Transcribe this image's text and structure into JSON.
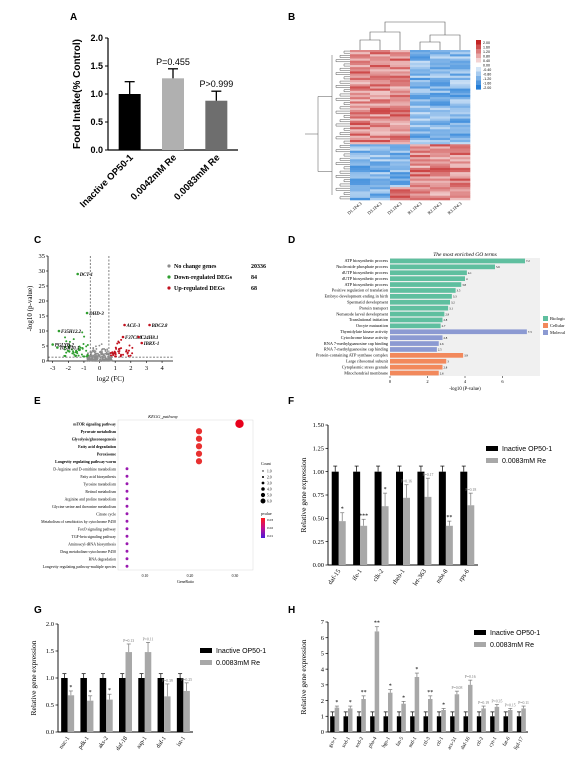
{
  "panel_labels": [
    "A",
    "B",
    "C",
    "D",
    "E",
    "F",
    "G",
    "H"
  ],
  "chart_data": [
    {
      "panel": "A",
      "type": "bar",
      "categories": [
        "Inactive OP50-1",
        "0.0042mM Re",
        "0.0083mM Re"
      ],
      "values": [
        1.0,
        1.28,
        0.88
      ],
      "errors": [
        0.22,
        0.17,
        0.17
      ],
      "colors": [
        "#000000",
        "#b0b0b0",
        "#6e6e6e"
      ],
      "ylabel": "Food Intake(% Control)",
      "ylim": [
        0,
        2.0
      ],
      "yticks": [
        "0.0",
        "0.5",
        "1.0",
        "1.5",
        "2.0"
      ],
      "annotations": [
        "P=0.455",
        "P>0.999"
      ]
    },
    {
      "panel": "B",
      "type": "heatmap",
      "columns": [
        "D1.1P4.3",
        "D3.1P4.3",
        "D3.1P4.3",
        "R1.1P4.3",
        "R2.1P4.3",
        "R3.1P4.3"
      ],
      "legend_values": [
        "2.00",
        "1.60",
        "1.20",
        "0.80",
        "0.40",
        "0.00",
        "-0.40",
        "-0.80",
        "-1.20",
        "-1.60",
        "-2.00"
      ],
      "rows": 70
    },
    {
      "panel": "C",
      "type": "scatter",
      "xlabel": "log2 (FC)",
      "ylabel": "-log10 (p-value)",
      "xticks": [
        "-3",
        "-2",
        "-1",
        "0",
        "1",
        "2",
        "3",
        "4"
      ],
      "yticks": [
        "0",
        "5",
        "10",
        "15",
        "20",
        "25",
        "30",
        "35"
      ],
      "legend": [
        {
          "label": "No change genes",
          "count": "20336",
          "color": "#8c8c8c"
        },
        {
          "label": "Down-regulated DEGs",
          "count": "84",
          "color": "#2f9e2f"
        },
        {
          "label": "Up-regulated DEGs",
          "count": "68",
          "color": "#c1121f"
        }
      ],
      "gene_labels": [
        "DCT-1",
        "DHD-3",
        "F35H12.2",
        "PGLYB-2",
        "T05H10.1",
        "ACE-3",
        "BDC2.8",
        "F37C8.9",
        "C24H8.1",
        "IBRX-1"
      ]
    },
    {
      "panel": "D",
      "type": "bar",
      "title": "The most enriched GO terms",
      "categories": [
        "ATP biosynthetic process",
        "Nucleoside phosphate process",
        "dUTP biosynthetic process",
        "dUTP biosynthetic process",
        "ATP biosynthetic process",
        "Positive regulation of translation",
        "Embryo development ending in birth",
        "Spermatid development",
        "Protein transport",
        "Nematode larval development",
        "Translational initiation",
        "Oocyte maturation",
        "Thymidylate kinase activity",
        "Cytochrome kinase activity",
        "RNA 7-methylguanosine cap binding",
        "RNA 7-methylguanosine cap binding",
        "Protein-containing ATP synthase complex",
        "Large ribosomal subunit",
        "Cytoplasmic stress granule",
        "Mitochondrial membrane"
      ],
      "values": [
        7.2,
        5.6,
        4.1,
        4.0,
        3.8,
        3.5,
        3.3,
        3.2,
        3.1,
        2.9,
        2.8,
        2.7,
        7.3,
        2.8,
        2.6,
        2.5,
        3.9,
        3.0,
        2.8,
        2.6
      ],
      "groups": [
        "bp",
        "bp",
        "bp",
        "bp",
        "bp",
        "bp",
        "bp",
        "bp",
        "bp",
        "bp",
        "bp",
        "bp",
        "mf",
        "mf",
        "mf",
        "mf",
        "cc",
        "cc",
        "cc",
        "cc"
      ],
      "legend": [
        {
          "label": "Biological process",
          "color": "#5fbf9f"
        },
        {
          "label": "Cellular component",
          "color": "#f2895c"
        },
        {
          "label": "Molecular function",
          "color": "#8c9ad2"
        }
      ],
      "xlabel": "-log10 (P-value)",
      "xticks": [
        "0",
        "2",
        "4",
        "6"
      ],
      "xlim": [
        0,
        8
      ]
    },
    {
      "panel": "E",
      "type": "scatter",
      "title": "KEGG_pathway",
      "categories": [
        "mTOR signaling pathway",
        "Pyruvate metabolism",
        "Glycolysis/gluconeogenesis",
        "Fatty acid degradation",
        "Peroxisome",
        "Longevity regulating pathway-worm",
        "D-Arginine and D-ornithine metabolism",
        "Fatty acid biosynthesis",
        "Tyrosine metabolism",
        "Retinol metabolism",
        "Arginine and proline metabolism",
        "Glycine serine and threonine metabolism",
        "Citrate cycle",
        "Metabolism of xenobiotics by cytochrome P450",
        "FoxO signaling pathway",
        "TGF-beta signaling pathway",
        "Aminoacyl-tRNA biosynthesis",
        "Drug metabolism-cytochrome P450",
        "RNA degradation",
        "Longevity regulating pathway-multiple species"
      ],
      "x": [
        0.31,
        0.22,
        0.22,
        0.22,
        0.22,
        0.22,
        0.06,
        0.06,
        0.06,
        0.06,
        0.06,
        0.06,
        0.06,
        0.06,
        0.06,
        0.06,
        0.06,
        0.06,
        0.06,
        0.06
      ],
      "size": [
        6,
        4,
        4,
        4,
        4,
        4,
        1,
        1,
        1,
        1,
        1,
        1,
        1,
        1,
        1,
        1,
        1,
        1,
        1,
        1
      ],
      "xlabel": "GeneRatio",
      "xticks": [
        "0.10",
        "0.20",
        "0.30"
      ],
      "xlim": [
        0.04,
        0.34
      ],
      "size_legend_title": "Count",
      "size_legend": [
        "1.0",
        "2.0",
        "3.0",
        "4.0",
        "5.0",
        "6.0"
      ],
      "color_legend_title": "pvalue",
      "color_legend": [
        "0.03",
        "0.02",
        "0.01"
      ]
    },
    {
      "panel": "F",
      "type": "bar",
      "categories": [
        "daf-15",
        "ife-1",
        "clk-2",
        "rheb-1",
        "let-363",
        "mbt-8",
        "rps-6"
      ],
      "series": [
        {
          "name": "Inactive OP50-1",
          "values": [
            1.0,
            1.0,
            1.0,
            1.0,
            1.0,
            1.0,
            1.0
          ],
          "color": "#000000"
        },
        {
          "name": "0.0083mM Re",
          "values": [
            0.47,
            0.42,
            0.63,
            0.72,
            0.73,
            0.42,
            0.64
          ],
          "color": "#a8a8a8"
        }
      ],
      "errors": [
        0.09,
        0.07,
        0.14,
        0.14,
        0.2,
        0.05,
        0.13
      ],
      "annotations": [
        "*",
        "***",
        "*",
        "P=0.16",
        "P=0.17",
        "**",
        "P=0.18"
      ],
      "ylabel": "Relative gene expression",
      "ylim": [
        0,
        1.5
      ],
      "yticks": [
        "0.00",
        "0.25",
        "0.50",
        "0.75",
        "1.00",
        "1.25",
        "1.50"
      ]
    },
    {
      "panel": "G",
      "type": "bar",
      "categories": [
        "nuc-1",
        "pdk-1",
        "aks-2",
        "daf-18",
        "aap-1",
        "daf-1",
        "ist-1"
      ],
      "series": [
        {
          "name": "Inactive OP50-1",
          "values": [
            1.0,
            1.0,
            1.0,
            1.0,
            1.0,
            1.0,
            1.0
          ],
          "color": "#000000"
        },
        {
          "name": "0.0083mM Re",
          "values": [
            0.68,
            0.58,
            0.6,
            1.48,
            1.48,
            0.66,
            0.76
          ],
          "color": "#a8a8a8"
        }
      ],
      "errors": [
        0.08,
        0.09,
        0.1,
        0.15,
        0.18,
        0.23,
        0.15
      ],
      "annotations": [
        "*",
        "*",
        "*",
        "P=0.13",
        "P=0.11",
        "P=0.39",
        "P=0.25"
      ],
      "ylabel": "Relative gene expression",
      "ylim": [
        0,
        2.0
      ],
      "yticks": [
        "0.0",
        "0.5",
        "1.0",
        "1.5",
        "2.0"
      ]
    },
    {
      "panel": "H",
      "type": "bar",
      "categories": [
        "gcs-1",
        "sod-1",
        "sod-2",
        "pha-4",
        "hgs-1",
        "fat-5",
        "mtl-1",
        "ctl-3",
        "ctl-1",
        "acs-51",
        "daf-16",
        "ctl-2",
        "cyt-1",
        "fat-6",
        "lipl-17"
      ],
      "series": [
        {
          "name": "Inactive OP50-1",
          "values": [
            1,
            1,
            1,
            1,
            1,
            1,
            1,
            1,
            1,
            1,
            1,
            1,
            1,
            1,
            1
          ],
          "color": "#000000"
        },
        {
          "name": "0.0083mM Re",
          "values": [
            1.55,
            1.5,
            2.1,
            6.4,
            2.5,
            1.8,
            3.5,
            2.1,
            1.4,
            2.4,
            3.0,
            1.5,
            1.6,
            1.4,
            1.5
          ],
          "color": "#a8a8a8"
        }
      ],
      "errors": [
        0.1,
        0.15,
        0.2,
        0.3,
        0.2,
        0.15,
        0.25,
        0.2,
        0.1,
        0.2,
        0.3,
        0.15,
        0.15,
        0.1,
        0.15
      ],
      "annotations": [
        "*",
        "*",
        "**",
        "**",
        "*",
        "*",
        "*",
        "**",
        "*",
        "P=0.08",
        "P=0.16",
        "P=0.19",
        "P=0.35",
        "P=0.15",
        "P=0.11"
      ],
      "ylabel": "Relative gene expression",
      "ylim": [
        0,
        7
      ],
      "yticks": [
        "0",
        "1",
        "2",
        "3",
        "4",
        "5",
        "6",
        "7"
      ]
    }
  ]
}
